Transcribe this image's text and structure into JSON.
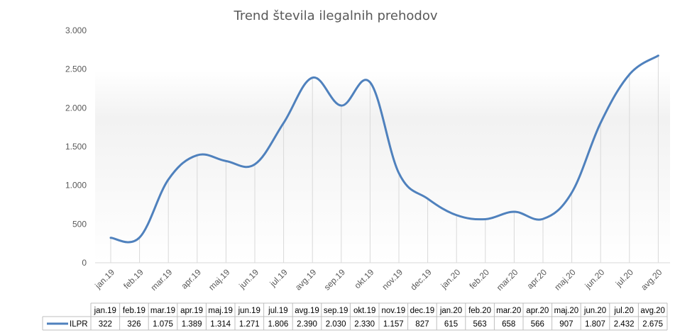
{
  "chart_data": {
    "type": "line",
    "title": "Trend števila ilegalnih prehodov",
    "categories": [
      "jan.19",
      "feb.19",
      "mar.19",
      "apr.19",
      "maj.19",
      "jun.19",
      "jul.19",
      "avg.19",
      "sep.19",
      "okt.19",
      "nov.19",
      "dec.19",
      "jan.20",
      "feb.20",
      "mar.20",
      "apr.20",
      "maj.20",
      "jun.20",
      "jul.20",
      "avg.20"
    ],
    "series": [
      {
        "name": "ILPR",
        "values": [
          322,
          326,
          1075,
          1389,
          1314,
          1271,
          1806,
          2390,
          2030,
          2330,
          1157,
          827,
          615,
          563,
          658,
          566,
          907,
          1807,
          2432,
          2675
        ],
        "labels": [
          "322",
          "326",
          "1.075",
          "1.389",
          "1.314",
          "1.271",
          "1.806",
          "2.390",
          "2.030",
          "2.330",
          "1.157",
          "827",
          "615",
          "563",
          "658",
          "566",
          "907",
          "1.807",
          "2.432",
          "2.675"
        ]
      }
    ],
    "ylim": [
      0,
      3000
    ],
    "yticks": [
      0,
      500,
      1000,
      1500,
      2000,
      2500,
      3000
    ],
    "ytick_labels": [
      "0",
      "500",
      "1.000",
      "1.500",
      "2.000",
      "2.500",
      "3.000"
    ],
    "line_color": "#4f81bd",
    "grid": "vertical",
    "legend": "data-table"
  }
}
